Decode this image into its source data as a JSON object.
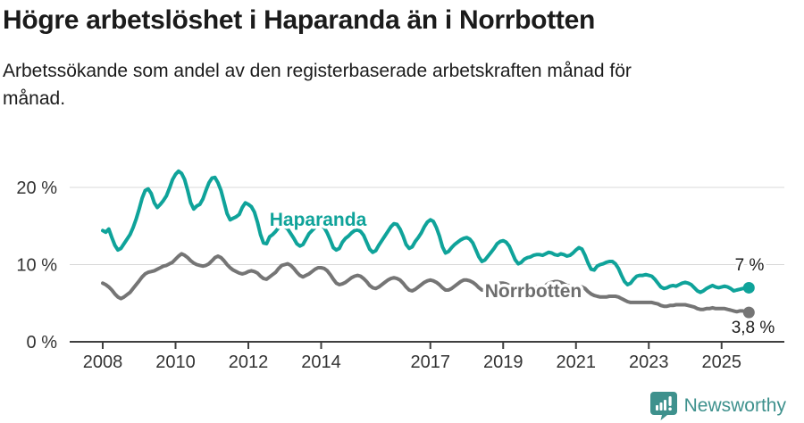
{
  "header": {
    "title": "Högre arbetslöshet i Haparanda än i Norrbotten",
    "subtitle": "Arbetssökande som andel av den registerbaserade arbetskraften månad för månad."
  },
  "footer": {
    "brand": "Newsworthy",
    "logo_color": "#3e918d"
  },
  "colors": {
    "haparanda": "#0fa39a",
    "norrbotten": "#757575",
    "gridline": "#d8d8d8",
    "axis": "#3f3f3f",
    "text": "#1b1b1b"
  },
  "chart_data": {
    "type": "line",
    "unit": "percent",
    "frequency": "monthly",
    "x_start": "2008-01",
    "x_end": "2025-10",
    "grid": "horizontal-only",
    "legend_position": "inline-labels",
    "x_ticks": [
      2008,
      2010,
      2012,
      2014,
      2017,
      2019,
      2021,
      2023,
      2025
    ],
    "x_tick_labels": [
      "2008",
      "2010",
      "2012",
      "2014",
      "2017",
      "2019",
      "2021",
      "2023",
      "2025"
    ],
    "y_ticks": [
      0,
      10,
      20
    ],
    "y_tick_labels": [
      "0 %",
      "10 %",
      "20 %"
    ],
    "ylim": [
      0,
      23.5
    ],
    "series": [
      {
        "name": "Haparanda",
        "color": "#0fa39a",
        "end_label": "7 %",
        "last_value": 7.0,
        "values": [
          14.4,
          14.2,
          14.6,
          13.5,
          12.5,
          11.9,
          12.1,
          12.7,
          13.3,
          13.9,
          14.8,
          15.9,
          17.2,
          18.6,
          19.6,
          19.8,
          19.2,
          18.0,
          17.4,
          17.8,
          18.3,
          18.9,
          19.9,
          21.0,
          21.7,
          22.1,
          21.8,
          21.0,
          19.6,
          18.0,
          17.2,
          17.6,
          17.8,
          18.5,
          19.6,
          20.6,
          21.2,
          21.3,
          20.6,
          19.6,
          18.1,
          16.6,
          15.8,
          16.0,
          16.2,
          16.5,
          17.4,
          18.0,
          17.8,
          17.5,
          16.8,
          15.5,
          13.9,
          12.8,
          12.7,
          13.6,
          13.9,
          14.3,
          14.8,
          15.0,
          14.9,
          14.6,
          14.0,
          13.4,
          12.7,
          12.4,
          12.6,
          13.3,
          14.0,
          14.4,
          14.8,
          15.1,
          15.1,
          14.8,
          14.1,
          13.2,
          12.2,
          11.9,
          12.1,
          12.9,
          13.4,
          13.7,
          14.1,
          14.4,
          14.5,
          14.3,
          13.8,
          12.9,
          12.0,
          11.6,
          11.8,
          12.5,
          13.1,
          13.7,
          14.3,
          14.9,
          15.3,
          15.2,
          14.6,
          13.7,
          12.6,
          12.1,
          12.3,
          13.0,
          13.5,
          14.1,
          14.9,
          15.5,
          15.8,
          15.6,
          14.8,
          13.7,
          12.3,
          11.5,
          11.7,
          12.2,
          12.6,
          12.9,
          13.2,
          13.4,
          13.5,
          13.3,
          12.8,
          11.9,
          11.0,
          10.4,
          10.6,
          11.1,
          11.6,
          12.1,
          12.7,
          13.0,
          13.1,
          12.9,
          12.4,
          11.5,
          10.6,
          10.1,
          10.3,
          10.7,
          10.9,
          11.0,
          11.2,
          11.3,
          11.3,
          11.2,
          11.4,
          11.6,
          11.5,
          11.3,
          11.2,
          11.4,
          11.3,
          11.1,
          11.2,
          11.5,
          11.9,
          12.2,
          12.0,
          11.2,
          10.2,
          9.4,
          9.3,
          9.8,
          10.0,
          10.1,
          10.3,
          10.4,
          10.4,
          10.1,
          9.5,
          8.6,
          7.8,
          7.4,
          7.6,
          8.1,
          8.5,
          8.6,
          8.6,
          8.7,
          8.6,
          8.5,
          8.1,
          7.6,
          7.1,
          6.9,
          7.0,
          7.2,
          7.3,
          7.2,
          7.4,
          7.6,
          7.7,
          7.6,
          7.4,
          7.0,
          6.6,
          6.4,
          6.6,
          6.9,
          7.1,
          7.3,
          7.1,
          7.0,
          7.1,
          7.2,
          7.1,
          6.9,
          6.6,
          6.7,
          6.8,
          6.9,
          7.0,
          7.0
        ]
      },
      {
        "name": "Norrbotten",
        "color": "#757575",
        "end_label": "3,8 %",
        "last_value": 3.8,
        "values": [
          7.6,
          7.4,
          7.1,
          6.7,
          6.2,
          5.8,
          5.6,
          5.8,
          6.1,
          6.4,
          6.9,
          7.4,
          7.9,
          8.4,
          8.8,
          9.0,
          9.1,
          9.2,
          9.4,
          9.6,
          9.8,
          9.9,
          10.1,
          10.3,
          10.7,
          11.1,
          11.4,
          11.2,
          10.9,
          10.5,
          10.2,
          10.0,
          9.9,
          9.8,
          9.9,
          10.1,
          10.5,
          10.9,
          11.1,
          10.9,
          10.5,
          10.0,
          9.6,
          9.3,
          9.1,
          8.9,
          8.8,
          8.9,
          9.1,
          9.2,
          9.1,
          8.9,
          8.5,
          8.2,
          8.1,
          8.4,
          8.7,
          9.0,
          9.5,
          9.9,
          10.0,
          10.1,
          9.9,
          9.5,
          9.0,
          8.6,
          8.4,
          8.6,
          8.8,
          9.1,
          9.4,
          9.6,
          9.6,
          9.5,
          9.2,
          8.7,
          8.1,
          7.6,
          7.4,
          7.5,
          7.7,
          8.0,
          8.3,
          8.5,
          8.6,
          8.5,
          8.2,
          7.8,
          7.3,
          7.0,
          6.9,
          7.1,
          7.4,
          7.7,
          8.0,
          8.2,
          8.3,
          8.2,
          8.0,
          7.6,
          7.1,
          6.7,
          6.6,
          6.8,
          7.1,
          7.4,
          7.7,
          7.9,
          8.0,
          7.9,
          7.7,
          7.4,
          7.0,
          6.7,
          6.7,
          6.9,
          7.2,
          7.5,
          7.8,
          8.0,
          8.0,
          7.9,
          7.7,
          7.4,
          7.0,
          6.7,
          6.7,
          6.9,
          7.1,
          7.3,
          7.5,
          7.6,
          7.6,
          7.5,
          7.3,
          7.1,
          6.8,
          6.6,
          6.6,
          6.7,
          6.8,
          6.9,
          7.0,
          7.1,
          7.1,
          7.1,
          7.3,
          7.6,
          7.7,
          7.8,
          7.8,
          7.7,
          7.5,
          7.3,
          7.2,
          7.2,
          7.2,
          7.2,
          7.1,
          6.9,
          6.5,
          6.2,
          6.0,
          5.9,
          5.8,
          5.8,
          5.8,
          5.9,
          5.9,
          5.9,
          5.8,
          5.6,
          5.4,
          5.2,
          5.1,
          5.1,
          5.1,
          5.1,
          5.1,
          5.1,
          5.1,
          5.1,
          5.0,
          4.9,
          4.7,
          4.6,
          4.6,
          4.7,
          4.7,
          4.8,
          4.8,
          4.8,
          4.8,
          4.7,
          4.6,
          4.5,
          4.3,
          4.2,
          4.2,
          4.3,
          4.3,
          4.4,
          4.3,
          4.3,
          4.3,
          4.3,
          4.2,
          4.1,
          4.0,
          3.9,
          4.0,
          4.0,
          3.9,
          3.8
        ]
      }
    ]
  }
}
